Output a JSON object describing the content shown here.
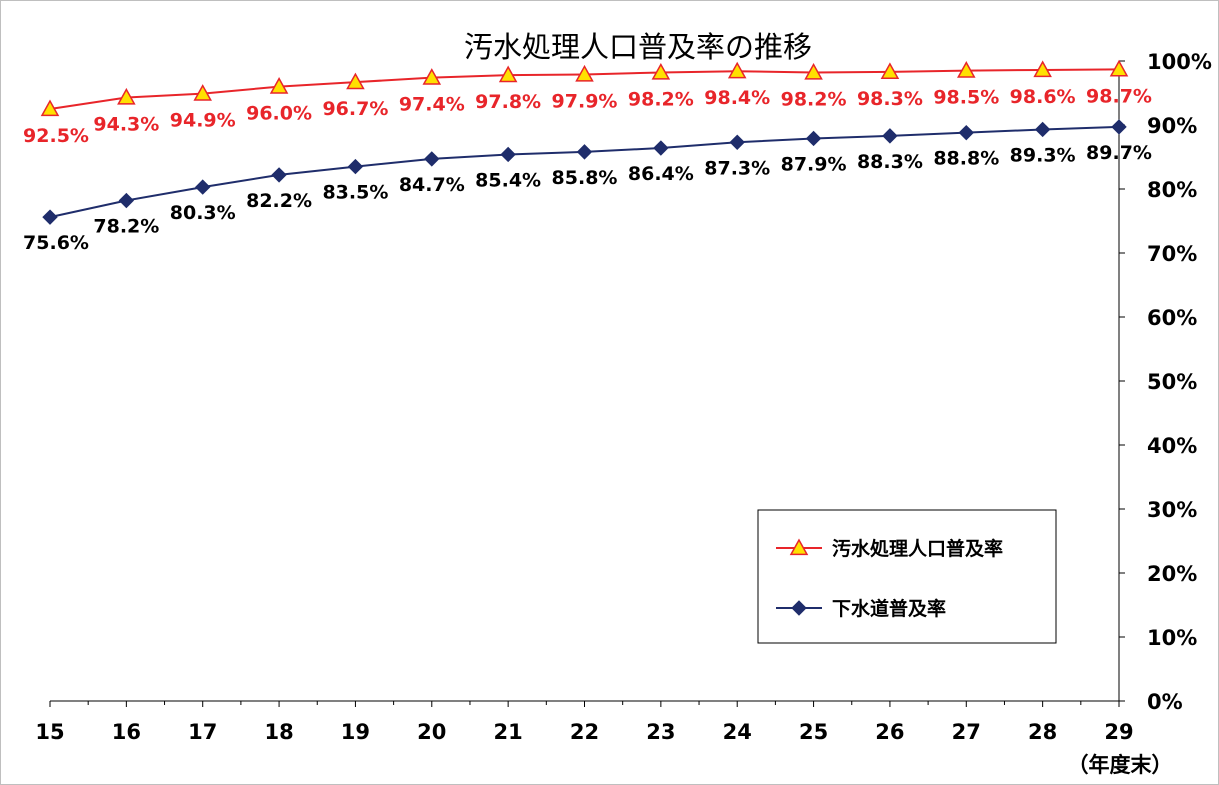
{
  "chart_data": {
    "type": "line",
    "title": "汚水処理人口普及率の推移",
    "xlabel": "（年度末）",
    "ylabel": "",
    "categories": [
      "15",
      "16",
      "17",
      "18",
      "19",
      "20",
      "21",
      "22",
      "23",
      "24",
      "25",
      "26",
      "27",
      "28",
      "29"
    ],
    "ylim": [
      0,
      100
    ],
    "yticks": [
      "0%",
      "10%",
      "20%",
      "30%",
      "40%",
      "50%",
      "60%",
      "70%",
      "80%",
      "90%",
      "100%"
    ],
    "y_axis_position": "right",
    "grid": false,
    "legend_position": "bottom-right",
    "series": [
      {
        "name": "汚水処理人口普及率",
        "color": "#e8252a",
        "marker": "triangle",
        "marker_fill": "#ffe000",
        "values": [
          92.5,
          94.3,
          94.9,
          96.0,
          96.7,
          97.4,
          97.8,
          97.9,
          98.2,
          98.4,
          98.2,
          98.3,
          98.5,
          98.6,
          98.7
        ],
        "labels": [
          "92.5%",
          "94.3%",
          "94.9%",
          "96.0%",
          "96.7%",
          "97.4%",
          "97.8%",
          "97.9%",
          "98.2%",
          "98.4%",
          "98.2%",
          "98.3%",
          "98.5%",
          "98.6%",
          "98.7%"
        ]
      },
      {
        "name": "下水道普及率",
        "color": "#1f2d6b",
        "marker": "diamond",
        "marker_fill": "#1f2d6b",
        "values": [
          75.6,
          78.2,
          80.3,
          82.2,
          83.5,
          84.7,
          85.4,
          85.8,
          86.4,
          87.3,
          87.9,
          88.3,
          88.8,
          89.3,
          89.7
        ],
        "labels": [
          "75.6%",
          "78.2%",
          "80.3%",
          "82.2%",
          "83.5%",
          "84.7%",
          "85.4%",
          "85.8%",
          "86.4%",
          "87.3%",
          "87.9%",
          "88.3%",
          "88.8%",
          "89.3%",
          "89.7%"
        ]
      }
    ]
  }
}
